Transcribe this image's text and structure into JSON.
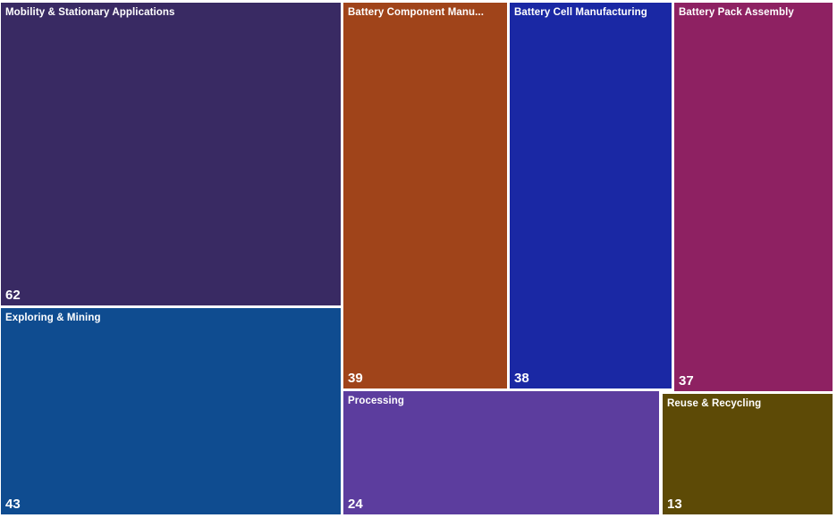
{
  "chart_data": {
    "type": "treemap",
    "title": "",
    "legend": "none",
    "gap_color": "#ffffff",
    "label_color": "#ffffff",
    "tiles": [
      {
        "label": "Mobility & Stationary Applications",
        "value": 62,
        "color": "#392A63"
      },
      {
        "label": "Exploring & Mining",
        "value": 43,
        "color": "#0F4C90"
      },
      {
        "label": "Battery Component Manu...",
        "value": 39,
        "color": "#A0441A"
      },
      {
        "label": "Battery Cell Manufacturing",
        "value": 38,
        "color": "#1A28A4"
      },
      {
        "label": "Battery Pack Assembly",
        "value": 37,
        "color": "#8E2162"
      },
      {
        "label": "Processing",
        "value": 24,
        "color": "#5C3D9E"
      },
      {
        "label": "Reuse & Recycling",
        "value": 13,
        "color": "#5D4A06"
      }
    ]
  }
}
